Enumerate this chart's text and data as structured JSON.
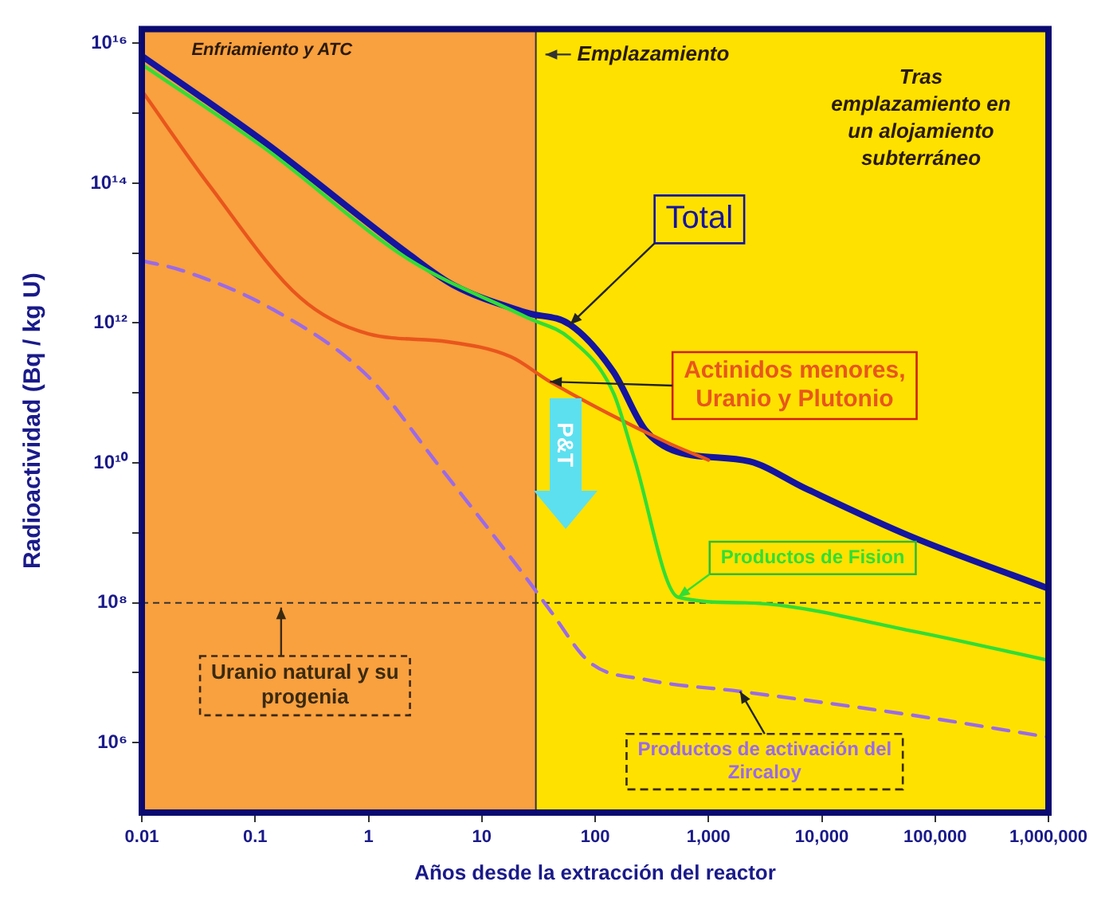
{
  "chart_data": {
    "type": "line",
    "xlabel": "Años desde la extracción del reactor",
    "ylabel": "Radioactividad (Bq / kg U)",
    "log": "xy",
    "xlim": [
      0.01,
      1000000
    ],
    "ylim": [
      100000,
      1.6e+16
    ],
    "xticks": [
      {
        "value": 0.01,
        "label": "0.01"
      },
      {
        "value": 0.1,
        "label": "0.1"
      },
      {
        "value": 1,
        "label": "1"
      },
      {
        "value": 10,
        "label": "10"
      },
      {
        "value": 100,
        "label": "100"
      },
      {
        "value": 1000,
        "label": "1,000"
      },
      {
        "value": 10000,
        "label": "10,000"
      },
      {
        "value": 100000,
        "label": "100,000"
      },
      {
        "value": 1000000,
        "label": "1,000,000"
      }
    ],
    "yticks": [
      {
        "value": 1000000.0,
        "label": "10⁶"
      },
      {
        "value": 10000000.0,
        "label": null
      },
      {
        "value": 100000000.0,
        "label": "10⁸"
      },
      {
        "value": 1000000000.0,
        "label": null
      },
      {
        "value": 10000000000.0,
        "label": "10¹⁰"
      },
      {
        "value": 100000000000.0,
        "label": null
      },
      {
        "value": 1000000000000.0,
        "label": "10¹²"
      },
      {
        "value": 10000000000000.0,
        "label": null
      },
      {
        "value": 100000000000000.0,
        "label": "10¹⁴"
      },
      {
        "value": 1000000000000000.0,
        "label": null
      },
      {
        "value": 1e+16,
        "label": "10¹⁶"
      }
    ],
    "grid": false,
    "legend": false,
    "marker": "none",
    "series": [
      {
        "name": "Total",
        "color": "#1414a0",
        "x": [
          0.01,
          0.12,
          2.3,
          5.6,
          25,
          60,
          145,
          275,
          525,
          2300,
          7000,
          60000,
          1000000
        ],
        "values": [
          6600000000000000.0,
          390000000000000.0,
          9500000000000.0,
          3500000000000.0,
          1400000000000.0,
          950000000000.0,
          200000000000.0,
          30000000000.0,
          14500000000.0,
          10500000000.0,
          4400000000.0,
          900000000.0,
          160000000.0
        ]
      },
      {
        "name": "Actinidos menores, Uranio y Plutonio",
        "color": "#e8561c",
        "x": [
          0.01,
          0.04,
          0.25,
          1,
          5,
          18,
          40,
          420,
          1000
        ],
        "values": [
          2100000000000000.0,
          90000000000000.0,
          2300000000000.0,
          700000000000.0,
          540000000000.0,
          330000000000.0,
          145000000000.0,
          20000000000.0,
          11000000000.0
        ]
      },
      {
        "name": "Productos de Fision",
        "color": "#33dd33",
        "x": [
          0.01,
          0.12,
          2.3,
          25,
          60,
          145,
          220,
          540,
          2100,
          60000,
          1000000
        ],
        "values": [
          5000000000000000.0,
          320000000000000.0,
          8000000000000.0,
          1200000000000.0,
          600000000000.0,
          100000000000.0,
          12000000000.0,
          120000000.0,
          100000000.0,
          40000000.0,
          15000000.0
        ]
      },
      {
        "name": "Productos de activación del Zircaloy",
        "color": "#9a6ae8",
        "line_style": "dashed",
        "x": [
          0.01,
          0.023,
          0.14,
          1,
          4,
          25,
          40,
          90,
          275,
          1900,
          60000,
          1000000
        ],
        "values": [
          7800000000000.0,
          5600000000000.0,
          1600000000000.0,
          170000000000.0,
          10000000000.0,
          220000000.0,
          78000000.0,
          14000000.0,
          8000000.0,
          5400000.0,
          2500000.0,
          1200000.0
        ]
      }
    ],
    "ref_lines": [
      {
        "axis": "y",
        "value": 100000000,
        "label": "Uranio natural y su progenia",
        "line_style": "dashed",
        "color": "#333333"
      },
      {
        "axis": "x",
        "value": 30,
        "label": "Emplazamiento",
        "color": "#333333"
      }
    ],
    "bands": [
      {
        "axis": "x",
        "from": 0.01,
        "to": 30,
        "label": "Enfriamiento y ATC",
        "color": "#f9a03f"
      },
      {
        "axis": "x",
        "from": 30,
        "to": 1000000,
        "label": "Tras emplazamiento en un alojamiento subterráneo",
        "color": "#ffe100"
      }
    ],
    "annotations": [
      "P&T"
    ]
  }
}
